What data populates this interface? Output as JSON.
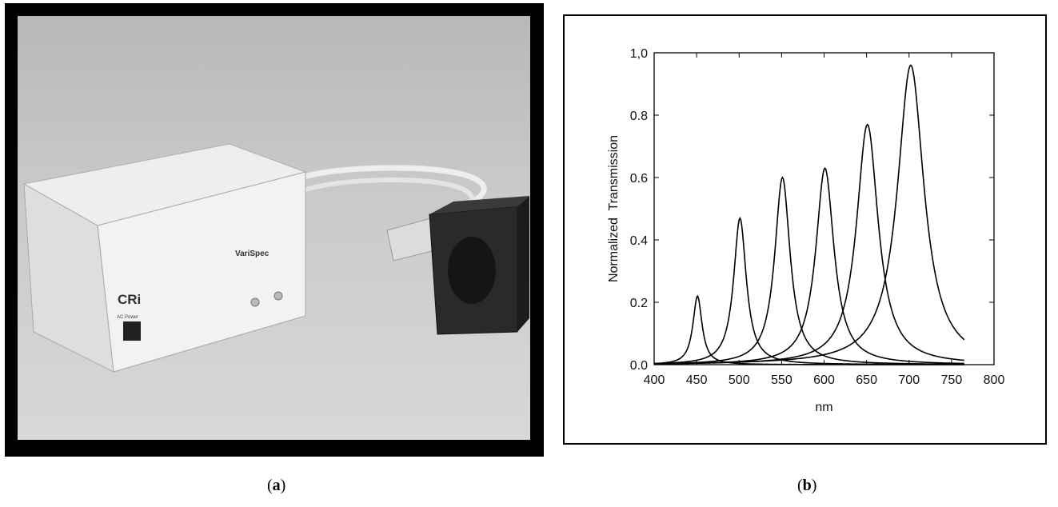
{
  "panels": {
    "a": {
      "caption_open": "(",
      "caption_letter": "a",
      "caption_close": ")",
      "device": {
        "logo_text": "CRi",
        "brand_text": "VariSpec",
        "power_label": "AC Power"
      }
    },
    "b": {
      "caption_open": "(",
      "caption_letter": "b",
      "caption_close": ")"
    }
  },
  "chart_data": {
    "type": "line",
    "title": "",
    "xlabel": "nm",
    "ylabel": "Normalized  Transmission",
    "xlim": [
      400,
      800
    ],
    "ylim": [
      0.0,
      1.0
    ],
    "x_ticks": [
      "400",
      "450",
      "500",
      "550",
      "600",
      "650",
      "700",
      "750",
      "800"
    ],
    "y_ticks": [
      "0.0",
      "0.2",
      "0.4",
      "0.6",
      "0.8",
      "1,0"
    ],
    "grid": false,
    "series": [
      {
        "center": 451,
        "peak": 0.22,
        "width": 6.5
      },
      {
        "center": 501,
        "peak": 0.47,
        "width": 9
      },
      {
        "center": 551,
        "peak": 0.6,
        "width": 11
      },
      {
        "center": 601,
        "peak": 0.63,
        "width": 13
      },
      {
        "center": 651,
        "peak": 0.77,
        "width": 15.5
      },
      {
        "center": 702,
        "peak": 0.96,
        "width": 19
      }
    ],
    "series_range": [
      400,
      765
    ],
    "line_color": "#000000"
  }
}
